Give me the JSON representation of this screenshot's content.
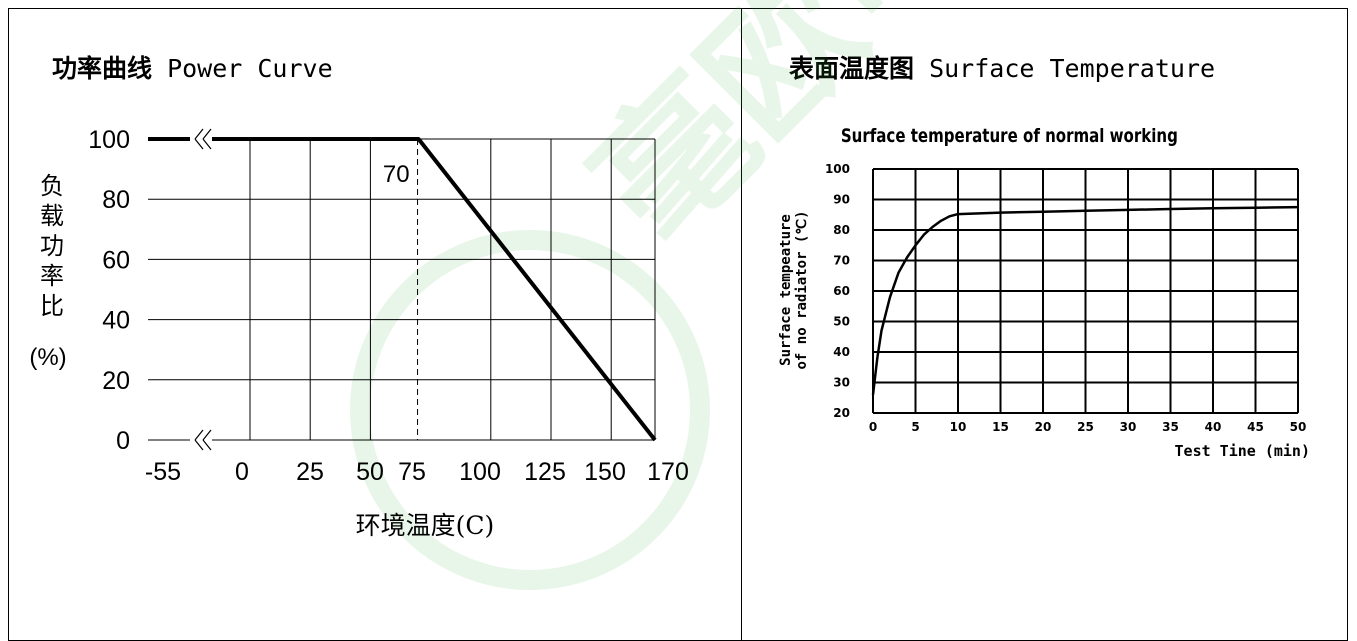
{
  "left": {
    "title_zh": "功率曲线",
    "title_en": "Power Curve"
  },
  "right": {
    "title_zh": "表面温度图",
    "title_en": "Surface Temperature"
  },
  "watermark_text": "毫欧电阻",
  "colors": {
    "line": "#000000",
    "watermark": "#3cb043"
  },
  "chart_data": [
    {
      "type": "line",
      "title": "",
      "xlabel": "环境温度(C)",
      "ylabel": [
        "负",
        "载",
        "功",
        "率",
        "比",
        "(%)"
      ],
      "x_tick_labels": [
        "-55",
        "0",
        "25",
        "50",
        "75",
        "100",
        "125",
        "150",
        "170"
      ],
      "y_tick_labels": [
        "0",
        "20",
        "40",
        "60",
        "80",
        "100"
      ],
      "ylim": [
        0,
        100
      ],
      "grid": true,
      "axis_break": true,
      "series": [
        {
          "x": [
            -55,
            70,
            170
          ],
          "y": [
            100,
            100,
            0
          ]
        }
      ],
      "annotations": [
        {
          "text": "70",
          "x": 70,
          "y": 100,
          "style": "dashed vertical line"
        }
      ]
    },
    {
      "type": "line",
      "title": "Surface temperature of normal working",
      "xlabel": "Test Tine (min)",
      "ylabel": [
        "Surface tempeature",
        "of no radiator (℃)"
      ],
      "x_ticks": [
        0,
        5,
        10,
        15,
        20,
        25,
        30,
        35,
        40,
        45,
        50
      ],
      "y_ticks": [
        20,
        30,
        40,
        50,
        60,
        70,
        80,
        90,
        100
      ],
      "xlim": [
        0,
        50
      ],
      "ylim": [
        20,
        100
      ],
      "grid": true,
      "series": [
        {
          "x": [
            0,
            0.5,
            1,
            2,
            3,
            4,
            5,
            6,
            7,
            8,
            9,
            10,
            15,
            20,
            25,
            30,
            35,
            40,
            45,
            50
          ],
          "y": [
            26,
            38,
            47,
            58,
            66,
            71,
            75,
            78.5,
            81,
            83,
            84.5,
            85.2,
            85.7,
            86,
            86.3,
            86.6,
            86.9,
            87.1,
            87.3,
            87.5
          ]
        }
      ]
    }
  ]
}
